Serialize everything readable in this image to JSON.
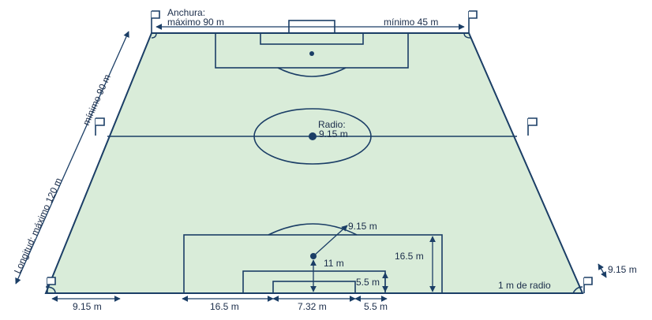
{
  "colors": {
    "field": "#d9ecd9",
    "line": "#1b3e66",
    "text": "#1b2d4a",
    "background": "#ffffff"
  },
  "labels": {
    "width_title": "Anchura:",
    "width_max": "máximo 90 m",
    "width_min": "mínimo 45 m",
    "length_min": "mínimo 90 m",
    "length_max": "Longitud: máximo 120 m",
    "radius_title": "Radio:",
    "radius_value": "9.15 m",
    "arc_radius": "9.15 m",
    "penalty_spot_dist": "11 m",
    "penalty_area_depth": "16.5 m",
    "goal_area_depth": "5.5 m",
    "corner_radius": "1 m de radio",
    "corner_distance": "9.15 m",
    "bottom_left_dist": "9.15 m",
    "penalty_area_side": "16.5 m",
    "goal_width": "7.32 m",
    "goal_area_side": "5.5 m"
  },
  "icons": [
    "corner-flag-icon",
    "halfway-flag-icon"
  ]
}
